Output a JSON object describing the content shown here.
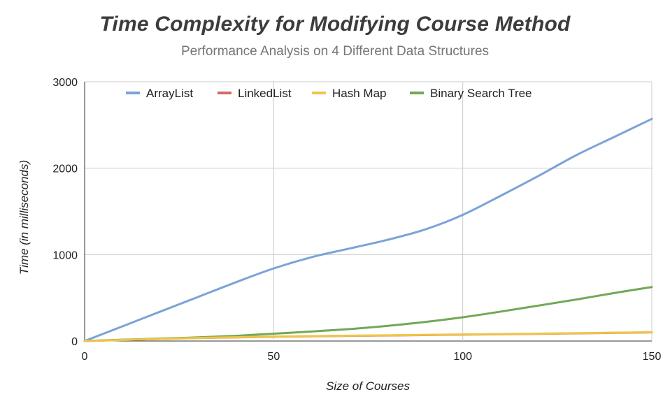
{
  "chart_data": {
    "type": "line",
    "title": "Time Complexity for Modifying Course Method",
    "subtitle": "Performance Analysis on 4 Different Data Structures",
    "xlabel": "Size of Courses",
    "ylabel": "Time (in milliseconds)",
    "xlim": [
      0,
      150
    ],
    "ylim": [
      0,
      3000
    ],
    "xticks": [
      0,
      50,
      100,
      150
    ],
    "yticks": [
      0,
      1000,
      2000,
      3000
    ],
    "grid": true,
    "legend_position": "top",
    "series": [
      {
        "name": "ArrayList",
        "color": "#7ba3d8",
        "x": [
          0,
          10,
          20,
          30,
          40,
          50,
          60,
          70,
          80,
          90,
          100,
          110,
          120,
          130,
          140,
          150
        ],
        "y": [
          0,
          170,
          340,
          510,
          680,
          840,
          970,
          1070,
          1170,
          1290,
          1460,
          1680,
          1910,
          2150,
          2360,
          2570
        ]
      },
      {
        "name": "LinkedList",
        "color": "#d36a63",
        "x": [
          0,
          25,
          50,
          75,
          100,
          125,
          150
        ],
        "y": [
          0,
          30,
          50,
          62,
          74,
          86,
          100
        ]
      },
      {
        "name": "Hash Map",
        "color": "#efc549",
        "x": [
          0,
          25,
          50,
          75,
          100,
          125,
          150
        ],
        "y": [
          0,
          30,
          52,
          64,
          76,
          88,
          102
        ]
      },
      {
        "name": "Binary Search Tree",
        "color": "#71a857",
        "x": [
          0,
          10,
          20,
          30,
          40,
          50,
          60,
          70,
          80,
          90,
          100,
          110,
          120,
          130,
          140,
          150
        ],
        "y": [
          0,
          15,
          28,
          42,
          60,
          85,
          110,
          138,
          175,
          220,
          275,
          340,
          410,
          480,
          555,
          625
        ]
      }
    ]
  }
}
